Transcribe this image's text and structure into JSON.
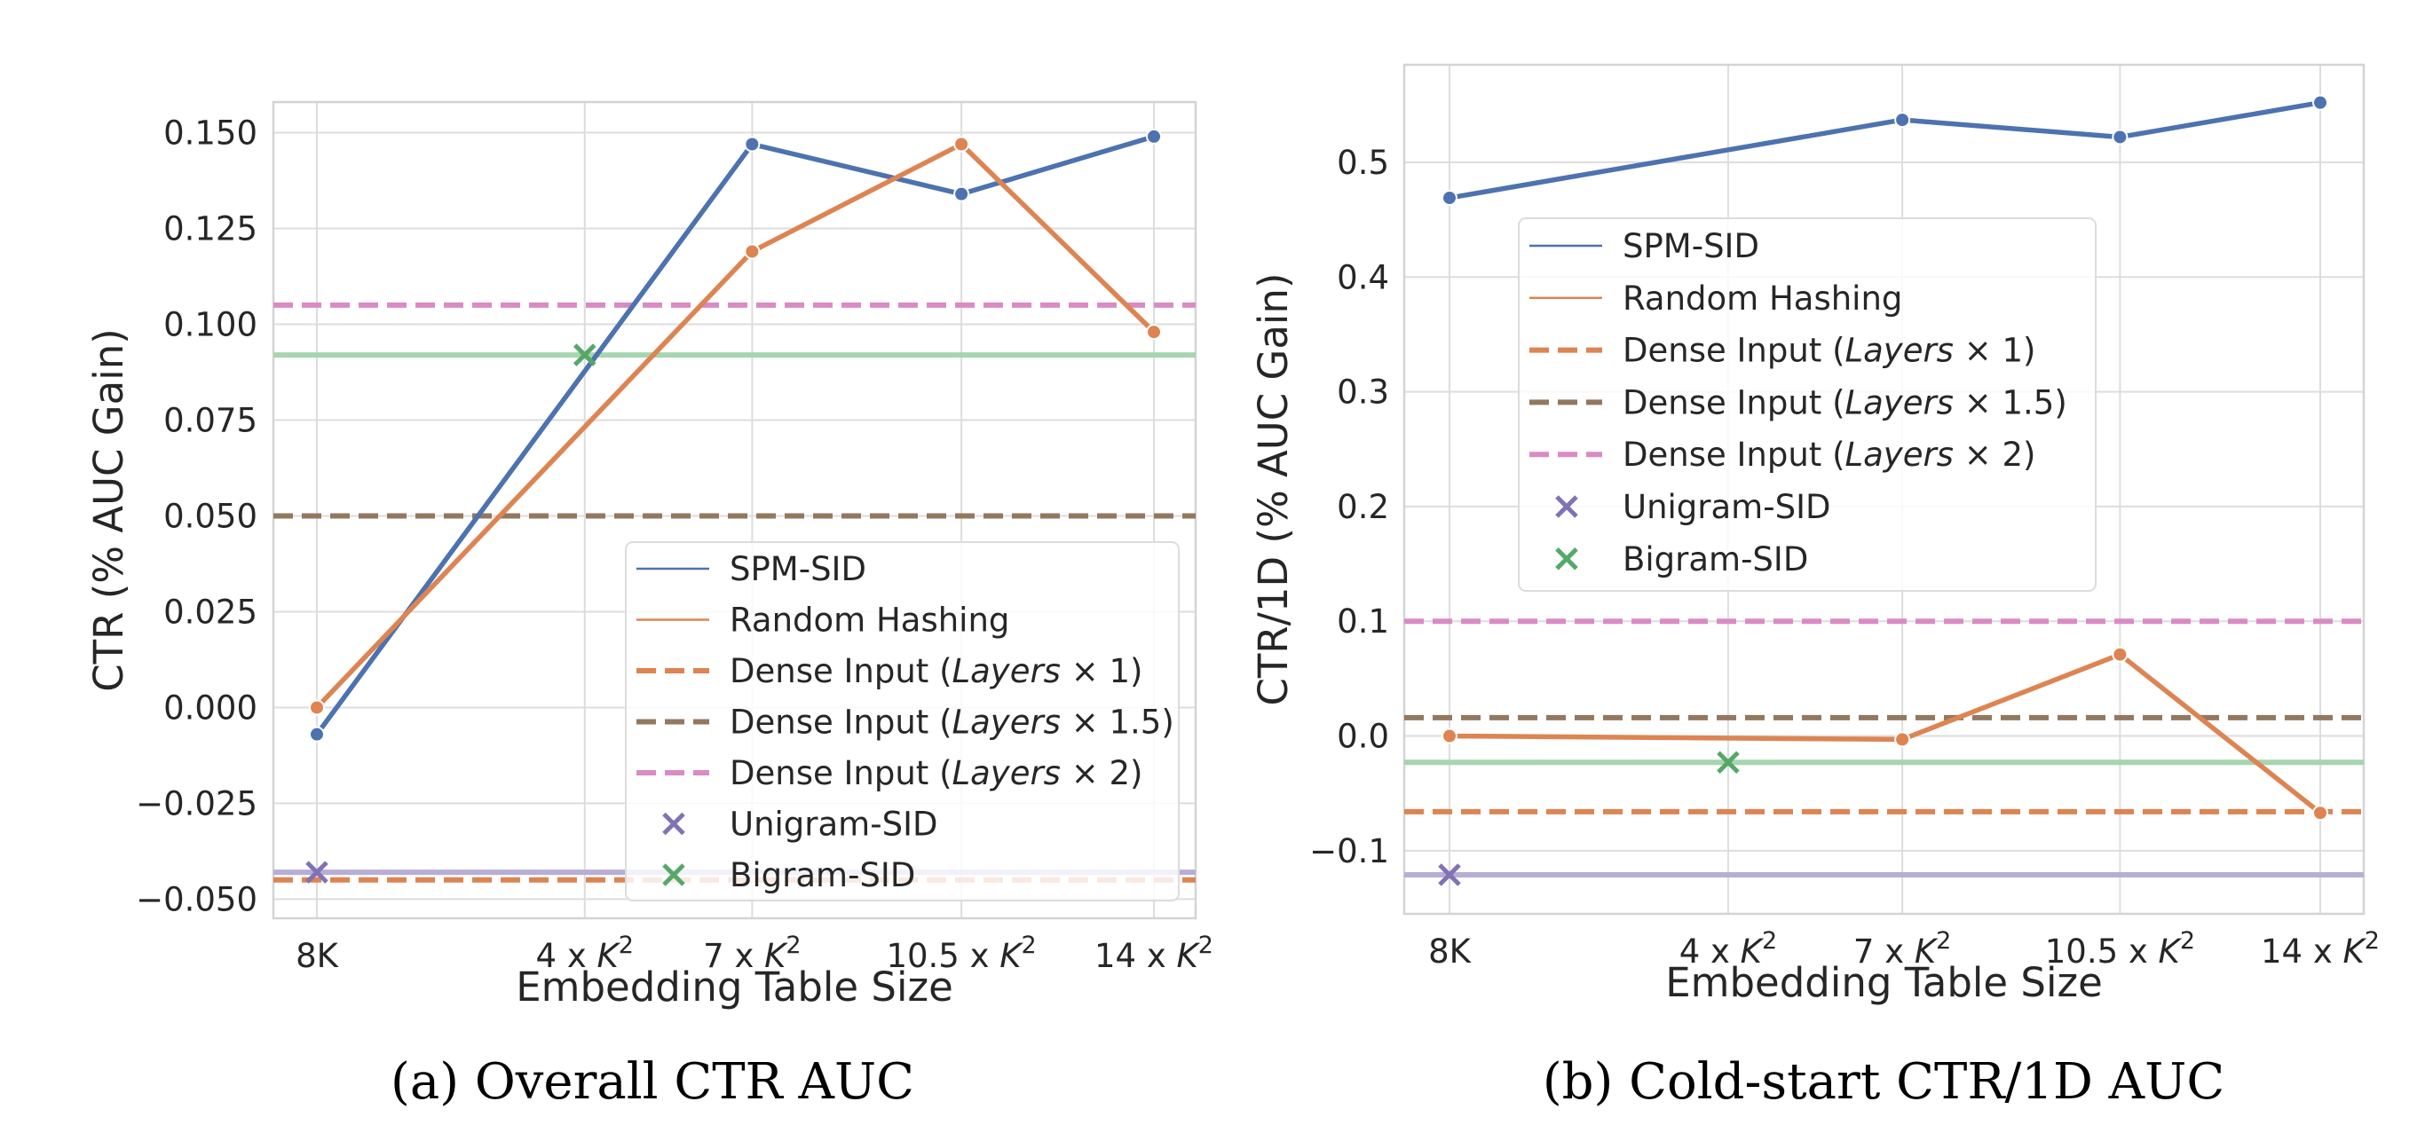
{
  "chart_data": [
    {
      "type": "line",
      "caption": "(a) Overall CTR AUC",
      "title": "",
      "xlabel": "Embedding Table Size",
      "ylabel": "CTR (% AUC Gain)",
      "categories": [
        "8K",
        "4 x K²",
        "7 x K²",
        "10.5 x K²",
        "14 x K²"
      ],
      "x_positions": [
        0.0,
        0.32,
        0.52,
        0.77,
        1.0
      ],
      "ylim": [
        -0.055,
        0.158
      ],
      "yticks": [
        -0.05,
        -0.025,
        0.0,
        0.025,
        0.05,
        0.075,
        0.1,
        0.125,
        0.15
      ],
      "ytick_labels": [
        "−0.050",
        "−0.025",
        "0.000",
        "0.025",
        "0.050",
        "0.075",
        "0.100",
        "0.125",
        "0.150"
      ],
      "grid": true,
      "legend_position": "bottom-right",
      "series": [
        {
          "name": "SPM-SID",
          "kind": "line",
          "x": [
            "8K",
            "7 x K²",
            "10.5 x K²",
            "14 x K²"
          ],
          "values": [
            -0.007,
            0.147,
            0.134,
            0.149
          ],
          "color": "#4C72B0"
        },
        {
          "name": "Random Hashing",
          "kind": "line",
          "x": [
            "8K",
            "7 x K²",
            "10.5 x K²",
            "14 x K²"
          ],
          "values": [
            0.0,
            0.119,
            0.147,
            0.098
          ],
          "color": "#DD8452"
        },
        {
          "name": "Dense Input (Layers × 1)",
          "kind": "hline",
          "value": -0.045,
          "color": "#DD8452",
          "dash": true
        },
        {
          "name": "Dense Input (Layers × 1.5)",
          "kind": "hline",
          "value": 0.05,
          "color": "#937860",
          "dash": true
        },
        {
          "name": "Dense Input (Layers × 2)",
          "kind": "hline",
          "value": 0.105,
          "color": "#DA8BC3",
          "dash": true
        },
        {
          "name": "Unigram-SID",
          "kind": "marker",
          "x": "8K",
          "value": -0.043,
          "color": "#8172B3",
          "line_color": "#B7AED6"
        },
        {
          "name": "Bigram-SID",
          "kind": "marker",
          "x": "4 x K²",
          "value": 0.092,
          "color": "#55A868",
          "line_color": "#A6D5B0"
        }
      ]
    },
    {
      "type": "line",
      "caption": "(b) Cold-start CTR/1D AUC",
      "title": "",
      "xlabel": "Embedding Table Size",
      "ylabel": "CTR/1D (% AUC Gain)",
      "categories": [
        "8K",
        "4 x K²",
        "7 x K²",
        "10.5 x K²",
        "14 x K²"
      ],
      "x_positions": [
        0.0,
        0.32,
        0.52,
        0.77,
        1.0
      ],
      "ylim": [
        -0.155,
        0.585
      ],
      "yticks": [
        -0.1,
        0.0,
        0.1,
        0.2,
        0.3,
        0.4,
        0.5
      ],
      "ytick_labels": [
        "−0.1",
        "0.0",
        "0.1",
        "0.2",
        "0.3",
        "0.4",
        "0.5"
      ],
      "grid": true,
      "legend_position": "upper-left",
      "series": [
        {
          "name": "SPM-SID",
          "kind": "line",
          "x": [
            "8K",
            "7 x K²",
            "10.5 x K²",
            "14 x K²"
          ],
          "values": [
            0.469,
            0.537,
            0.522,
            0.552
          ],
          "color": "#4C72B0"
        },
        {
          "name": "Random Hashing",
          "kind": "line",
          "x": [
            "8K",
            "7 x K²",
            "10.5 x K²",
            "14 x K²"
          ],
          "values": [
            0.0,
            -0.003,
            0.071,
            -0.067
          ],
          "color": "#DD8452"
        },
        {
          "name": "Dense Input (Layers × 1)",
          "kind": "hline",
          "value": -0.066,
          "color": "#DD8452",
          "dash": true
        },
        {
          "name": "Dense Input (Layers × 1.5)",
          "kind": "hline",
          "value": 0.016,
          "color": "#937860",
          "dash": true
        },
        {
          "name": "Dense Input (Layers × 2)",
          "kind": "hline",
          "value": 0.1,
          "color": "#DA8BC3",
          "dash": true
        },
        {
          "name": "Unigram-SID",
          "kind": "marker",
          "x": "8K",
          "value": -0.121,
          "color": "#8172B3",
          "line_color": "#B7AED6"
        },
        {
          "name": "Bigram-SID",
          "kind": "marker",
          "x": "4 x K²",
          "value": -0.023,
          "color": "#55A868",
          "line_color": "#A6D5B0"
        }
      ]
    }
  ]
}
